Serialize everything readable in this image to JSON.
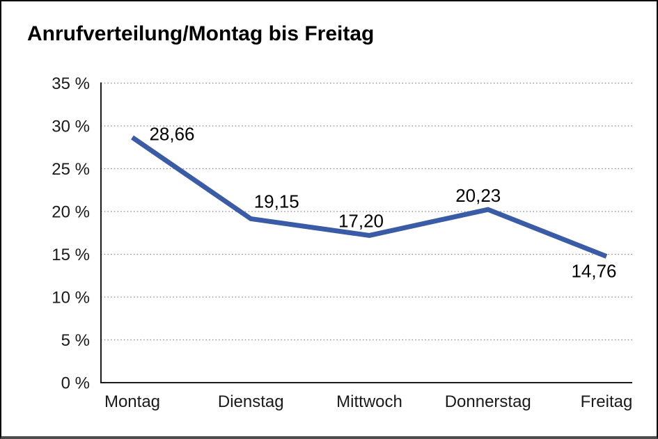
{
  "page": {
    "background_color": "#ffffff",
    "frame_border_color": "#000000",
    "frame_bottom_border_color": "#4d4d4d"
  },
  "chart_data": {
    "type": "line",
    "title": "Anrufverteilung/Montag bis Freitag",
    "categories": [
      "Montag",
      "Dienstag",
      "Mittwoch",
      "Donnerstag",
      "Freitag"
    ],
    "values": [
      28.66,
      19.15,
      17.2,
      20.23,
      14.76
    ],
    "value_labels": [
      "28,66",
      "19,15",
      "17,20",
      "20,23",
      "14,76"
    ],
    "series_name": "Anrufverteilung",
    "xlabel": "",
    "ylabel": "",
    "ylim": [
      0,
      35
    ],
    "y_ticks": [
      0,
      5,
      10,
      15,
      20,
      25,
      30,
      35
    ],
    "y_tick_labels": [
      "0 %",
      "5 %",
      "10 %",
      "15 %",
      "20 %",
      "25 %",
      "30 %",
      "35 %"
    ],
    "grid": "horizontal-dotted",
    "legend_position": "none",
    "line_color": "#3a5ba5",
    "grid_color": "#8a8a8a",
    "axis_color": "#1a1a1a",
    "label_color": "#1a1a1a"
  }
}
